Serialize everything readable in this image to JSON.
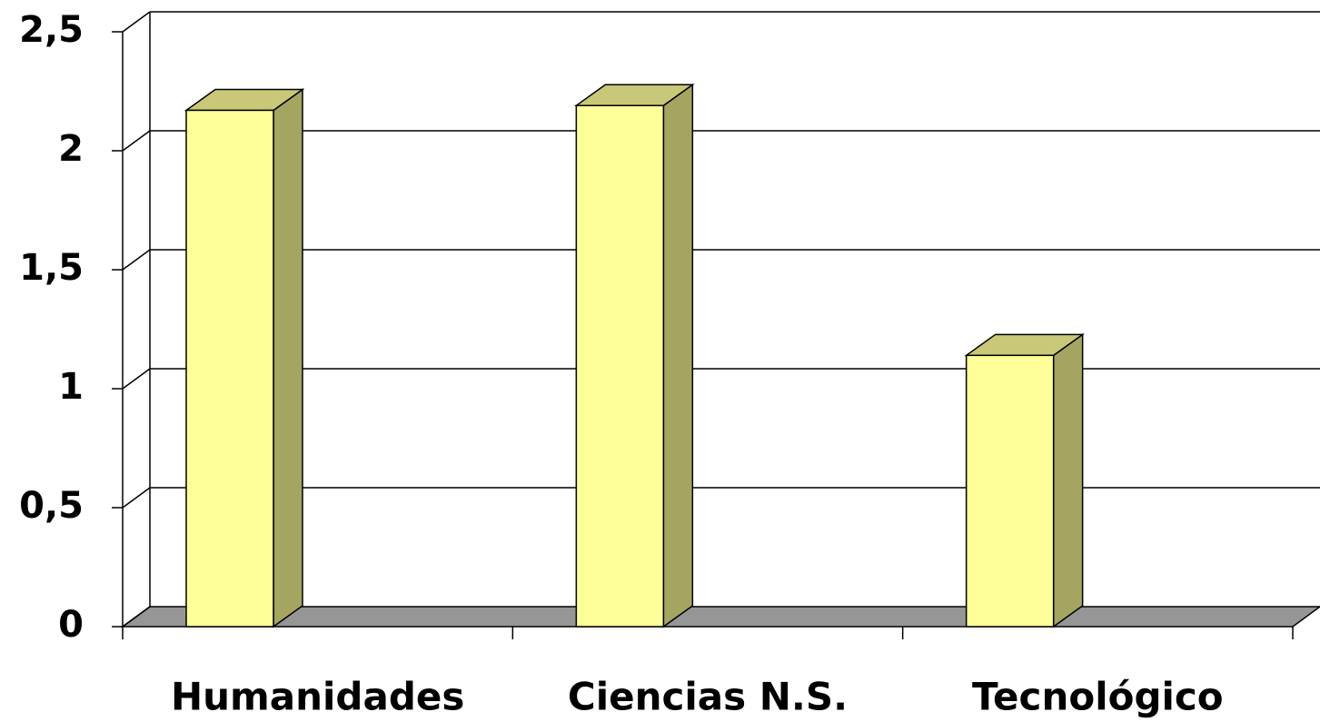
{
  "chart_data": {
    "type": "bar",
    "categories": [
      "Humanidades",
      "Ciencias N.S.",
      "Tecnológico"
    ],
    "values": [
      2.17,
      2.19,
      1.14
    ],
    "color": "#ffff99",
    "ylim": [
      0,
      2.5
    ],
    "yticks": [
      0,
      {
        "value": 0.5,
        "label": "0,5"
      },
      1,
      {
        "value": 1.5,
        "label": "1,5"
      },
      2,
      {
        "value": 2.5,
        "label": "2,5"
      }
    ],
    "grid": true
  }
}
